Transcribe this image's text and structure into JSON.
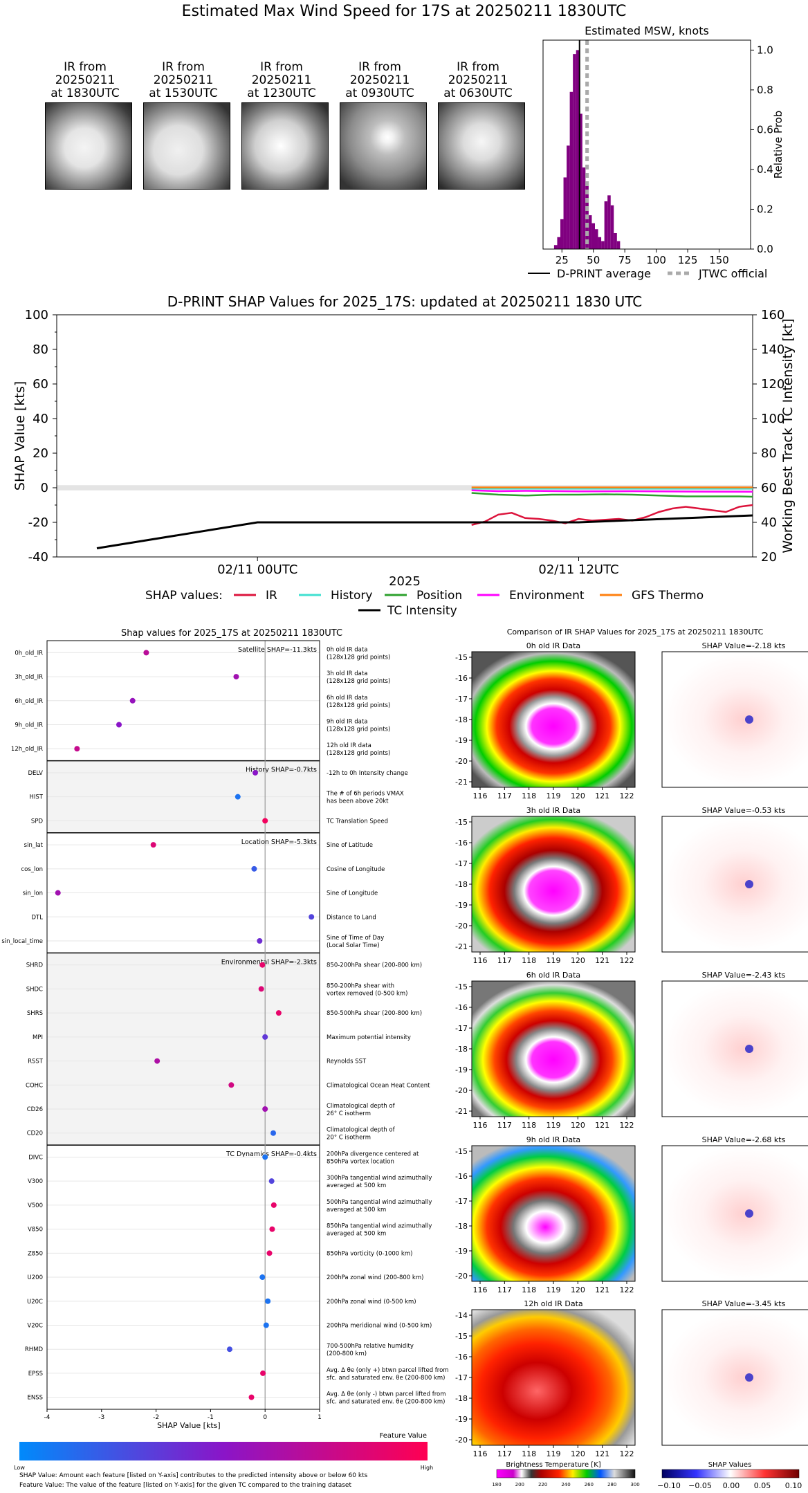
{
  "page_title": "Estimated Max Wind Speed for 17S at 20250211 1830UTC",
  "thumbnails": [
    {
      "l1": "IR from",
      "l2": "20250211",
      "l3": "at 1830UTC"
    },
    {
      "l1": "IR from",
      "l2": "20250211",
      "l3": "at 1530UTC"
    },
    {
      "l1": "IR from",
      "l2": "20250211",
      "l3": "at 1230UTC"
    },
    {
      "l1": "IR from",
      "l2": "20250211",
      "l3": "at 0930UTC"
    },
    {
      "l1": "IR from",
      "l2": "20250211",
      "l3": "at 0630UTC"
    }
  ],
  "chart_data": [
    {
      "id": "msw_hist",
      "type": "bar",
      "title": "Estimated MSW, knots",
      "ylabel": "Relative Prob",
      "xlim": [
        10,
        175
      ],
      "ylim": [
        0,
        1.05
      ],
      "xticks": [
        25,
        50,
        75,
        100,
        125,
        150
      ],
      "yticks": [
        0.0,
        0.2,
        0.4,
        0.6,
        0.8,
        1.0
      ],
      "bin_width": 2.5,
      "bins": [
        {
          "x": 20,
          "y": 0.02
        },
        {
          "x": 22.5,
          "y": 0.06
        },
        {
          "x": 25,
          "y": 0.15
        },
        {
          "x": 27.5,
          "y": 0.36
        },
        {
          "x": 30,
          "y": 0.52
        },
        {
          "x": 32.5,
          "y": 0.79
        },
        {
          "x": 35,
          "y": 0.98
        },
        {
          "x": 37.5,
          "y": 1.0
        },
        {
          "x": 40,
          "y": 0.68
        },
        {
          "x": 42.5,
          "y": 0.41
        },
        {
          "x": 45,
          "y": 0.34
        },
        {
          "x": 47.5,
          "y": 0.17
        },
        {
          "x": 50,
          "y": 0.13
        },
        {
          "x": 52.5,
          "y": 0.1
        },
        {
          "x": 55,
          "y": 0.06
        },
        {
          "x": 57.5,
          "y": 0.04
        },
        {
          "x": 60,
          "y": 0.24
        },
        {
          "x": 62.5,
          "y": 0.27
        },
        {
          "x": 65,
          "y": 0.22
        },
        {
          "x": 67.5,
          "y": 0.08
        },
        {
          "x": 70,
          "y": 0.04
        }
      ],
      "dprint_average": 39,
      "jtwc_official": 45,
      "bar_color": "#800080",
      "legend": [
        "D-PRINT average",
        "JTWC official"
      ]
    },
    {
      "id": "shap_timeseries",
      "type": "line",
      "title": "D-PRINT SHAP Values for 2025_17S: updated at 20250211 1830 UTC",
      "ylabel": "SHAP Value [kts]",
      "y2label": "Working Best Track TC Intensity [kt]",
      "xlabel": "2025",
      "xticklabels": [
        "02/11 00UTC",
        "02/11 12UTC"
      ],
      "xlim_hours": [
        -7.5,
        18.5
      ],
      "ylim": [
        -40,
        100
      ],
      "y2lim": [
        20,
        160
      ],
      "yticks": [
        -40,
        -20,
        0,
        20,
        40,
        60,
        80,
        100
      ],
      "y2ticks": [
        20,
        40,
        60,
        80,
        100,
        120,
        140,
        160
      ],
      "series": [
        {
          "name": "IR",
          "color": "#dc143c",
          "x": [
            8,
            8.5,
            9,
            9.5,
            10,
            10.5,
            11,
            11.5,
            12,
            12.5,
            13,
            13.5,
            14,
            14.5,
            15,
            15.5,
            16,
            16.5,
            17,
            17.5,
            18,
            18.5
          ],
          "y": [
            -21.5,
            -19.5,
            -15.5,
            -14.5,
            -17.5,
            -18,
            -19,
            -20.5,
            -18,
            -19,
            -18.5,
            -18,
            -19,
            -17,
            -14,
            -12,
            -11,
            -12,
            -13,
            -14,
            -11,
            -10
          ]
        },
        {
          "name": "History",
          "color": "#40e0d0",
          "x": [
            8,
            18.5
          ],
          "y": [
            -0.5,
            -0.5
          ]
        },
        {
          "name": "Position",
          "color": "#2ca02c",
          "x": [
            8,
            9,
            10,
            11,
            12,
            13,
            14,
            15,
            16,
            17,
            18,
            18.5
          ],
          "y": [
            -3,
            -4,
            -4.5,
            -4,
            -4,
            -3.8,
            -4,
            -4.5,
            -5,
            -5,
            -5,
            -5.2
          ]
        },
        {
          "name": "Environment",
          "color": "#ff00ff",
          "x": [
            8,
            9,
            10,
            12,
            14,
            16,
            18.5
          ],
          "y": [
            -1.5,
            -2,
            -1.8,
            -2.1,
            -2,
            -2.2,
            -2.3
          ]
        },
        {
          "name": "GFS Thermo",
          "color": "#ff7f0e",
          "x": [
            8,
            18.5
          ],
          "y": [
            0.2,
            0.2
          ]
        },
        {
          "name": "TC Intensity",
          "color": "#000000",
          "axis": "right",
          "x": [
            -6,
            0,
            12,
            18.5
          ],
          "y": [
            25,
            40,
            40,
            44
          ]
        }
      ],
      "legend_prefix": "SHAP values:"
    },
    {
      "id": "shap_features",
      "type": "scatter",
      "title": "Shap values for 2025_17S at 20250211 1830UTC",
      "xlabel": "SHAP Value [kts]",
      "xlim": [
        -4,
        1
      ],
      "xticks": [
        -4,
        -3,
        -2,
        -1,
        0,
        1
      ],
      "groups": [
        {
          "label": "Satellite SHAP=-11.3kts",
          "shaded": false,
          "rows": [
            {
              "name": "0h_old_IR",
              "shap": -2.18,
              "fv": 0.7,
              "desc1": "0h old IR data",
              "desc2": "(128x128 grid points)"
            },
            {
              "name": "3h_old_IR",
              "shap": -0.53,
              "fv": 0.6,
              "desc1": "3h old IR data",
              "desc2": "(128x128 grid points)"
            },
            {
              "name": "6h_old_IR",
              "shap": -2.43,
              "fv": 0.55,
              "desc1": "6h old IR data",
              "desc2": "(128x128 grid points)"
            },
            {
              "name": "9h_old_IR",
              "shap": -2.68,
              "fv": 0.5,
              "desc1": "9h old IR data",
              "desc2": "(128x128 grid points)"
            },
            {
              "name": "12h_old_IR",
              "shap": -3.45,
              "fv": 0.75,
              "desc1": "12h old IR data",
              "desc2": "(128x128 grid points)"
            }
          ]
        },
        {
          "label": "History SHAP=-0.7kts",
          "shaded": true,
          "rows": [
            {
              "name": "DELV",
              "shap": -0.18,
              "fv": 0.5,
              "desc1": "-12h to 0h Intensity change",
              "desc2": ""
            },
            {
              "name": "HIST",
              "shap": -0.5,
              "fv": 0.1,
              "desc1": "The # of 6h periods VMAX",
              "desc2": "has been above 20kt"
            },
            {
              "name": "SPD",
              "shap": 0.0,
              "fv": 0.95,
              "desc1": "TC Translation Speed",
              "desc2": ""
            }
          ]
        },
        {
          "label": "Location SHAP=-5.3kts",
          "shaded": false,
          "rows": [
            {
              "name": "sin_lat",
              "shap": -2.05,
              "fv": 0.85,
              "desc1": "Sine of Latitude",
              "desc2": ""
            },
            {
              "name": "cos_lon",
              "shap": -0.2,
              "fv": 0.2,
              "desc1": "Cosine of Longitude",
              "desc2": ""
            },
            {
              "name": "sin_lon",
              "shap": -3.8,
              "fv": 0.6,
              "desc1": "Sine of Longitude",
              "desc2": ""
            },
            {
              "name": "DTL",
              "shap": 0.85,
              "fv": 0.3,
              "desc1": "Distance to Land",
              "desc2": ""
            },
            {
              "name": "sin_local_time",
              "shap": -0.1,
              "fv": 0.4,
              "desc1": "Sine of Time of Day",
              "desc2": "(Local Solar Time)"
            }
          ]
        },
        {
          "label": "Environmental SHAP=-2.3kts",
          "shaded": true,
          "rows": [
            {
              "name": "SHRD",
              "shap": -0.05,
              "fv": 0.9,
              "desc1": "850-200hPa shear (200-800 km)",
              "desc2": ""
            },
            {
              "name": "SHDC",
              "shap": -0.07,
              "fv": 0.85,
              "desc1": "850-200hPa shear with",
              "desc2": "vortex removed (0-500 km)"
            },
            {
              "name": "SHRS",
              "shap": 0.25,
              "fv": 0.9,
              "desc1": "850-500hPa shear (200-800 km)",
              "desc2": ""
            },
            {
              "name": "MPI",
              "shap": 0.0,
              "fv": 0.35,
              "desc1": "Maximum potential intensity",
              "desc2": ""
            },
            {
              "name": "RSST",
              "shap": -1.98,
              "fv": 0.65,
              "desc1": "Reynolds SST",
              "desc2": ""
            },
            {
              "name": "COHC",
              "shap": -0.62,
              "fv": 0.8,
              "desc1": "Climatological Ocean Heat Content",
              "desc2": ""
            },
            {
              "name": "CD26",
              "shap": 0.0,
              "fv": 0.6,
              "desc1": "Climatological depth of",
              "desc2": "26° C isotherm"
            },
            {
              "name": "CD20",
              "shap": 0.15,
              "fv": 0.15,
              "desc1": "Climatological depth of",
              "desc2": "20° C isotherm"
            }
          ]
        },
        {
          "label": "TC Dynamics SHAP=-0.4kts",
          "shaded": false,
          "rows": [
            {
              "name": "DIVC",
              "shap": 0.0,
              "fv": 0.1,
              "desc1": "200hPa divergence centered at",
              "desc2": "850hPa vortex location"
            },
            {
              "name": "V300",
              "shap": 0.12,
              "fv": 0.3,
              "desc1": "300hPa tangential wind azimuthally",
              "desc2": "averaged at 500 km"
            },
            {
              "name": "V500",
              "shap": 0.16,
              "fv": 0.9,
              "desc1": "500hPa tangential wind azimuthally",
              "desc2": "averaged at 500 km"
            },
            {
              "name": "V850",
              "shap": 0.13,
              "fv": 0.9,
              "desc1": "850hPa tangential wind azimuthally",
              "desc2": "averaged at 500 km"
            },
            {
              "name": "Z850",
              "shap": 0.08,
              "fv": 0.9,
              "desc1": "850hPa vorticity (0-1000 km)",
              "desc2": ""
            },
            {
              "name": "U200",
              "shap": -0.05,
              "fv": 0.1,
              "desc1": "200hPa zonal wind (200-800 km)",
              "desc2": ""
            },
            {
              "name": "U20C",
              "shap": 0.05,
              "fv": 0.1,
              "desc1": "200hPa zonal wind (0-500 km)",
              "desc2": ""
            },
            {
              "name": "V20C",
              "shap": 0.02,
              "fv": 0.1,
              "desc1": "200hPa meridional wind (0-500 km)",
              "desc2": ""
            },
            {
              "name": "RHMD",
              "shap": -0.65,
              "fv": 0.25,
              "desc1": "700-500hPa relative humidity",
              "desc2": "(200-800 km)"
            },
            {
              "name": "EPSS",
              "shap": -0.04,
              "fv": 0.9,
              "desc1": "Avg. Δ θe (only +) btwn parcel lifted from",
              "desc2": "sfc. and saturated env. θe (200-800 km)"
            },
            {
              "name": "ENSS",
              "shap": -0.25,
              "fv": 0.9,
              "desc1": "Avg. Δ θe (only -) btwn parcel lifted from",
              "desc2": "sfc. and saturated env. θe (200-800 km)"
            }
          ]
        }
      ]
    }
  ],
  "feature_colorbar": {
    "title": "Feature Value",
    "low": "Low",
    "high": "High"
  },
  "notes": [
    "SHAP Value: Amount each feature [listed on Y-axis] contributes to the predicted intensity above or below 60 kts",
    "Feature Value: The value of the feature [listed on Y-axis] for the given TC compared to the training dataset"
  ],
  "ir_comparison": {
    "title": "Comparison of IR SHAP Values for 2025_17S at 20250211 1830UTC",
    "xticks": [
      "116",
      "117",
      "118",
      "119",
      "120",
      "121",
      "122"
    ],
    "panels": [
      {
        "ir_title": "0h old IR Data",
        "shap_title": "SHAP Value=-2.18 kts",
        "yticks": [
          "-15",
          "-16",
          "-17",
          "-18",
          "-19",
          "-20",
          "-21"
        ]
      },
      {
        "ir_title": "3h old IR Data",
        "shap_title": "SHAP Value=-0.53 kts",
        "yticks": [
          "-15",
          "-16",
          "-17",
          "-18",
          "-19",
          "-20",
          "-21"
        ]
      },
      {
        "ir_title": "6h old IR Data",
        "shap_title": "SHAP Value=-2.43 kts",
        "yticks": [
          "-15",
          "-16",
          "-17",
          "-18",
          "-19",
          "-20",
          "-21"
        ]
      },
      {
        "ir_title": "9h old IR Data",
        "shap_title": "SHAP Value=-2.68 kts",
        "yticks": [
          "-15",
          "-16",
          "-17",
          "-18",
          "-19",
          "-20"
        ]
      },
      {
        "ir_title": "12h old IR Data",
        "shap_title": "SHAP Value=-3.45 kts",
        "yticks": [
          "-14",
          "-15",
          "-16",
          "-17",
          "-18",
          "-19",
          "-20"
        ]
      }
    ],
    "bt_colorbar": {
      "title": "Brightness Temperature [K]",
      "ticks": [
        "180",
        "200",
        "220",
        "240",
        "260",
        "280",
        "300"
      ]
    },
    "shap_colorbar": {
      "title": "SHAP Values",
      "ticks": [
        "−0.10",
        "−0.05",
        "0.00",
        "0.05",
        "0.10"
      ]
    }
  }
}
